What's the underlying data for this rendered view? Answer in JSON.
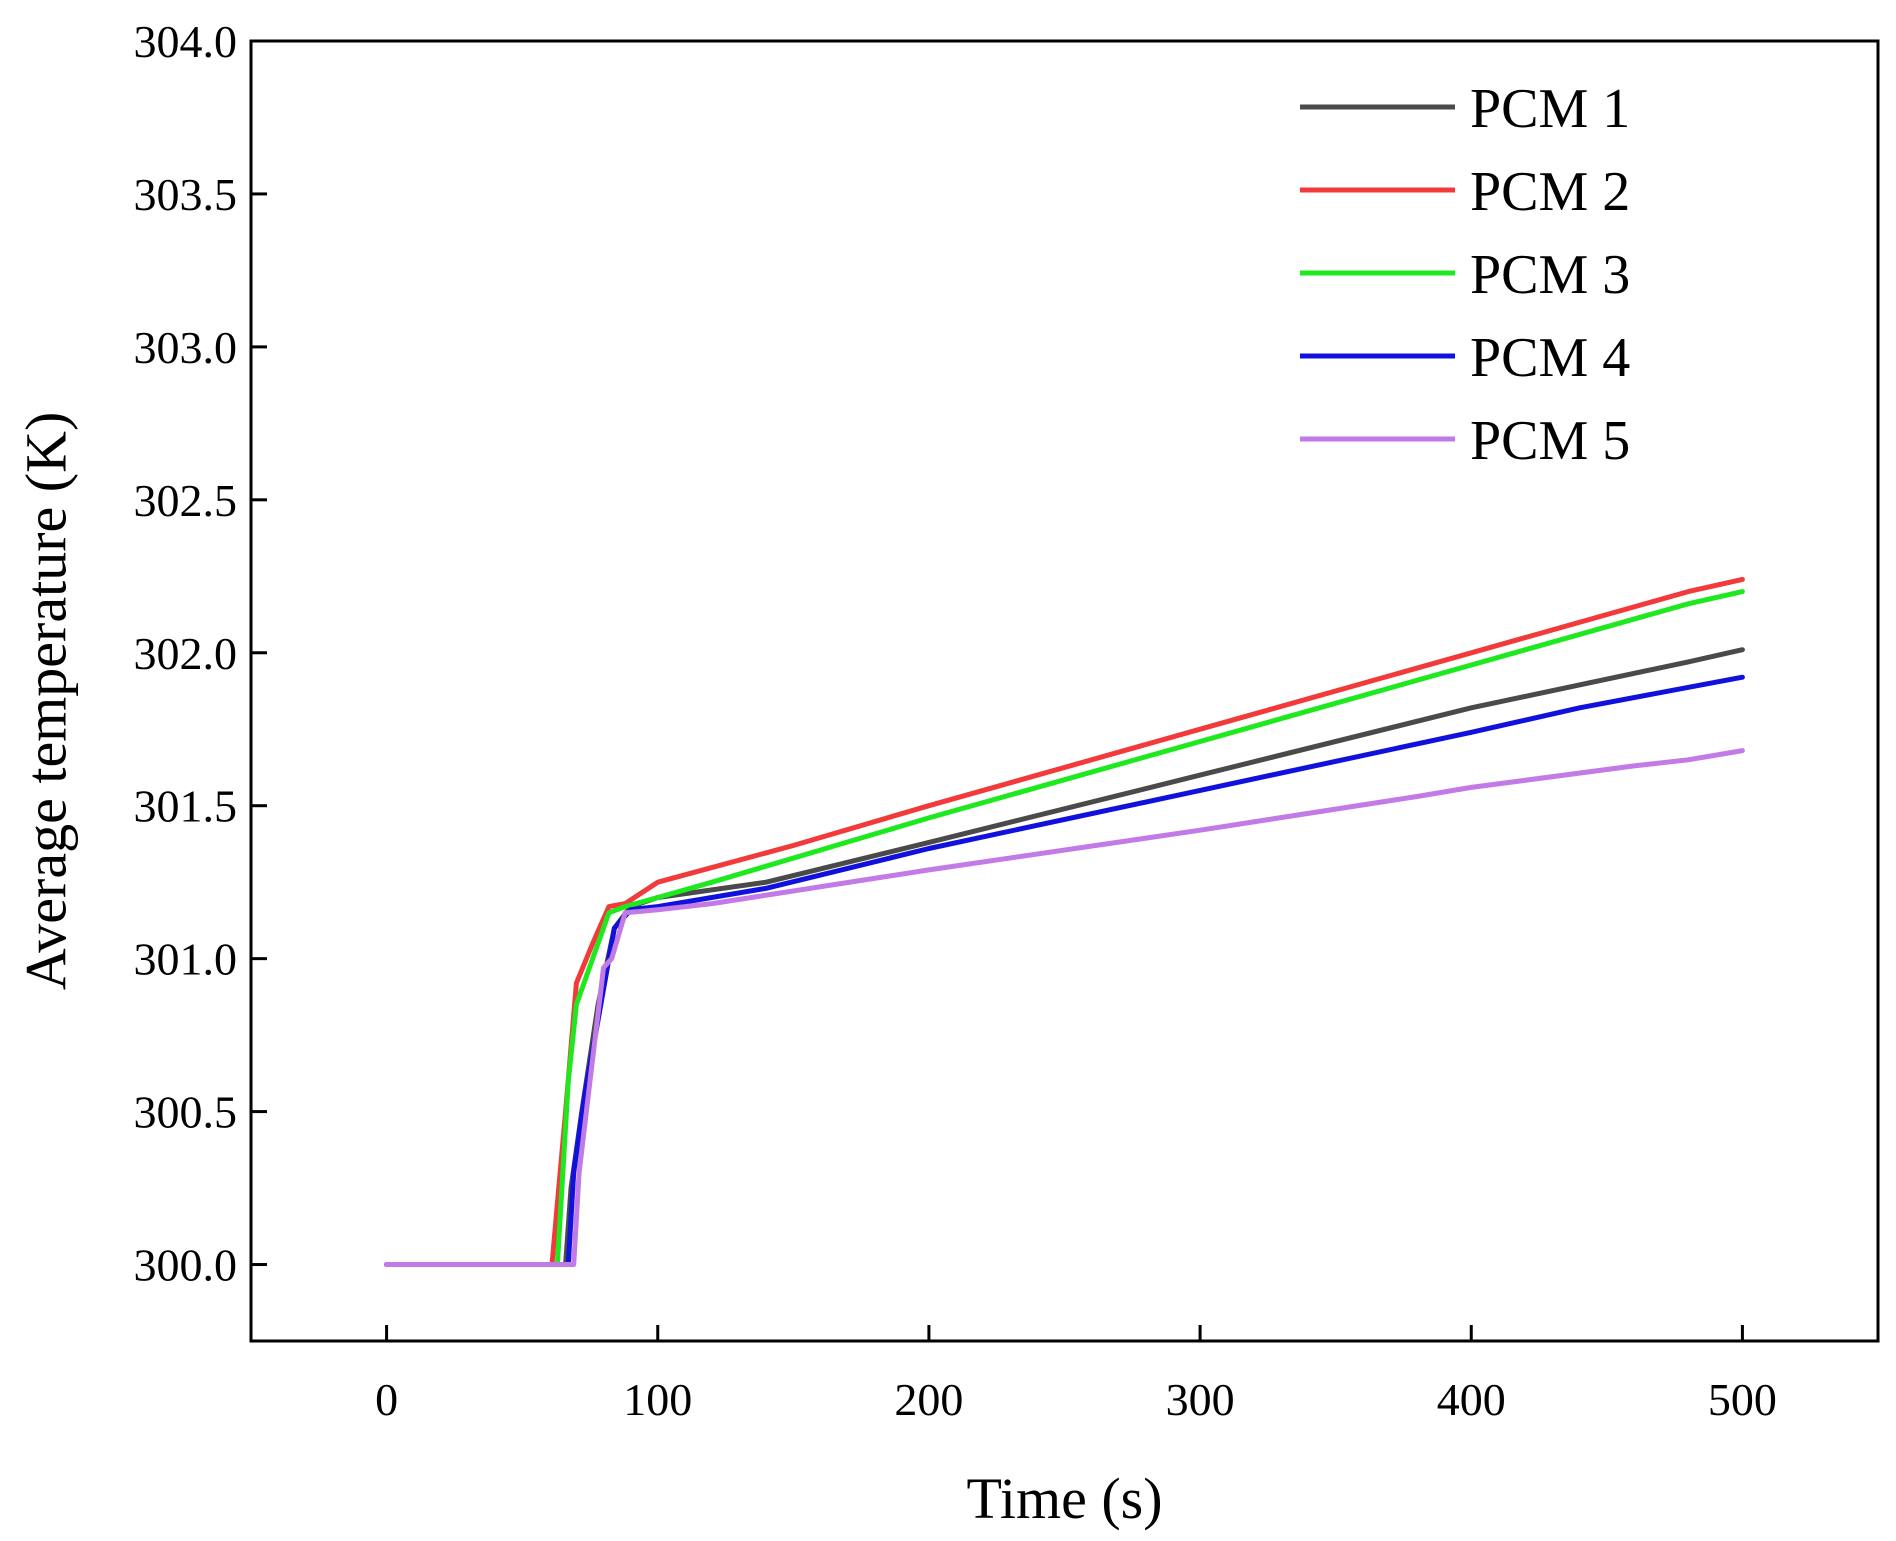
{
  "chart_data": {
    "type": "line",
    "title": "",
    "xlabel": "Time (s)",
    "ylabel": "Average temperature (K)",
    "xlim": [
      -50,
      550
    ],
    "ylim": [
      299.75,
      304.0
    ],
    "xticks": [
      0,
      100,
      200,
      300,
      400,
      500
    ],
    "xtick_labels": [
      "0",
      "100",
      "200",
      "300",
      "400",
      "500"
    ],
    "yticks": [
      300.0,
      300.5,
      301.0,
      301.5,
      302.0,
      302.5,
      303.0,
      303.5,
      304.0
    ],
    "ytick_labels": [
      "300.0",
      "300.5",
      "301.0",
      "301.5",
      "302.0",
      "302.5",
      "303.0",
      "303.5",
      "304.0"
    ],
    "legend_position": "top-right",
    "series": [
      {
        "name": "PCM 1",
        "color": "#4a4a4a",
        "x": [
          0,
          66,
          68,
          72,
          78,
          84,
          90,
          100,
          140,
          200,
          300,
          400,
          480,
          500
        ],
        "y": [
          300.0,
          300.0,
          300.25,
          300.5,
          300.85,
          301.1,
          301.17,
          301.2,
          301.25,
          301.38,
          301.6,
          301.82,
          301.97,
          302.01
        ]
      },
      {
        "name": "PCM 2",
        "color": "#f23a3a",
        "x": [
          0,
          61,
          63,
          66,
          70,
          76,
          82,
          88,
          100,
          150,
          200,
          300,
          400,
          480,
          500
        ],
        "y": [
          300.0,
          300.0,
          300.2,
          300.5,
          300.92,
          301.05,
          301.17,
          301.18,
          301.25,
          301.37,
          301.5,
          301.75,
          302.0,
          302.2,
          302.24
        ]
      },
      {
        "name": "PCM 3",
        "color": "#1ee81e",
        "x": [
          0,
          63,
          65,
          67,
          70,
          76,
          82,
          88,
          100,
          120,
          200,
          300,
          400,
          480,
          500
        ],
        "y": [
          300.0,
          300.0,
          300.3,
          300.6,
          300.85,
          301.0,
          301.15,
          301.17,
          301.2,
          301.25,
          301.46,
          301.71,
          301.96,
          302.16,
          302.2
        ]
      },
      {
        "name": "PCM 4",
        "color": "#1111dd",
        "x": [
          0,
          67,
          69,
          73,
          78,
          84,
          90,
          100,
          140,
          200,
          300,
          400,
          440,
          500
        ],
        "y": [
          300.0,
          300.0,
          300.3,
          300.55,
          300.8,
          301.1,
          301.16,
          301.17,
          301.23,
          301.36,
          301.55,
          301.74,
          301.82,
          301.92
        ]
      },
      {
        "name": "PCM 5",
        "color": "#c27ae6",
        "x": [
          0,
          69,
          71,
          75,
          80,
          83,
          88,
          100,
          120,
          200,
          300,
          380,
          400,
          460,
          480,
          500
        ],
        "y": [
          300.0,
          300.0,
          300.3,
          300.6,
          300.97,
          301.0,
          301.15,
          301.16,
          301.18,
          301.29,
          301.42,
          301.53,
          301.56,
          301.63,
          301.65,
          301.68
        ]
      }
    ]
  }
}
